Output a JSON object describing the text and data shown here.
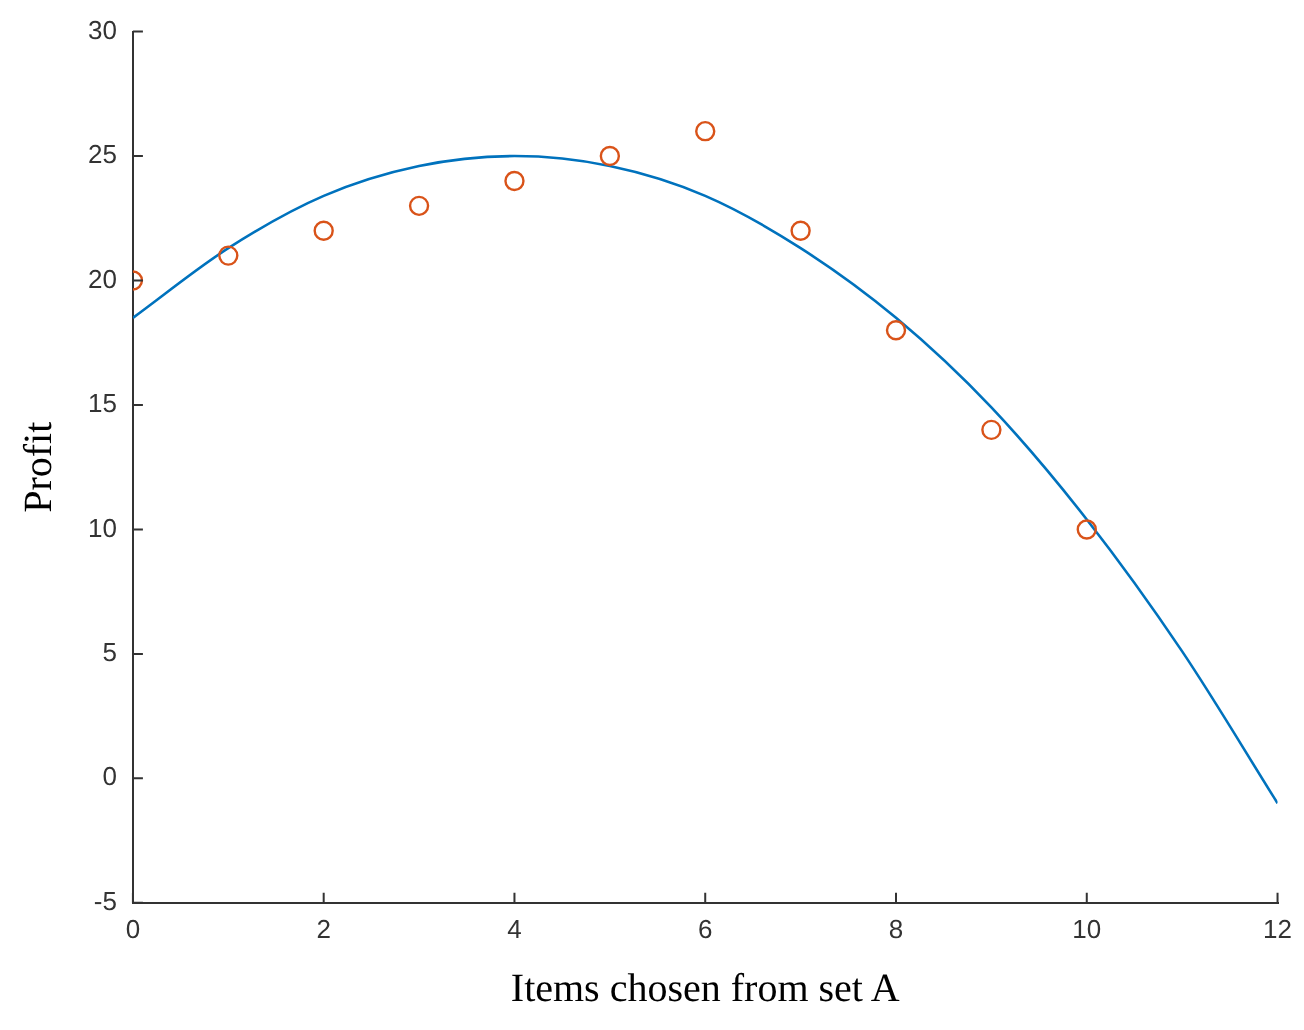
{
  "chart_data": {
    "type": "scatter",
    "xlabel": "Items chosen from set A",
    "ylabel": "Profit",
    "xlim": [
      0,
      12
    ],
    "xticks": [
      0,
      2,
      4,
      6,
      8,
      10,
      12
    ],
    "ylim": [
      -5,
      30
    ],
    "yticks": [
      -5,
      0,
      5,
      10,
      15,
      20,
      25,
      30
    ],
    "grid": false,
    "legend": false,
    "marker": "circle",
    "series": [
      {
        "color": "#d95319",
        "x": [
          0,
          1,
          2,
          3,
          4,
          5,
          6,
          7,
          8,
          9,
          10
        ],
        "values": [
          20,
          21,
          22,
          23,
          24,
          25,
          26,
          22,
          18,
          14,
          10
        ]
      },
      {
        "type": "line",
        "color": "#0072bd",
        "marker": "none",
        "line_style": "solid",
        "x": [
          0,
          1,
          2,
          3,
          4,
          5,
          6,
          7,
          8,
          9,
          10,
          11,
          12
        ],
        "values": [
          18.5,
          21.3,
          23.4,
          24.6,
          25,
          24.6,
          23.4,
          21.3,
          18.5,
          14.9,
          10.4,
          5.1,
          -1
        ]
      }
    ]
  }
}
